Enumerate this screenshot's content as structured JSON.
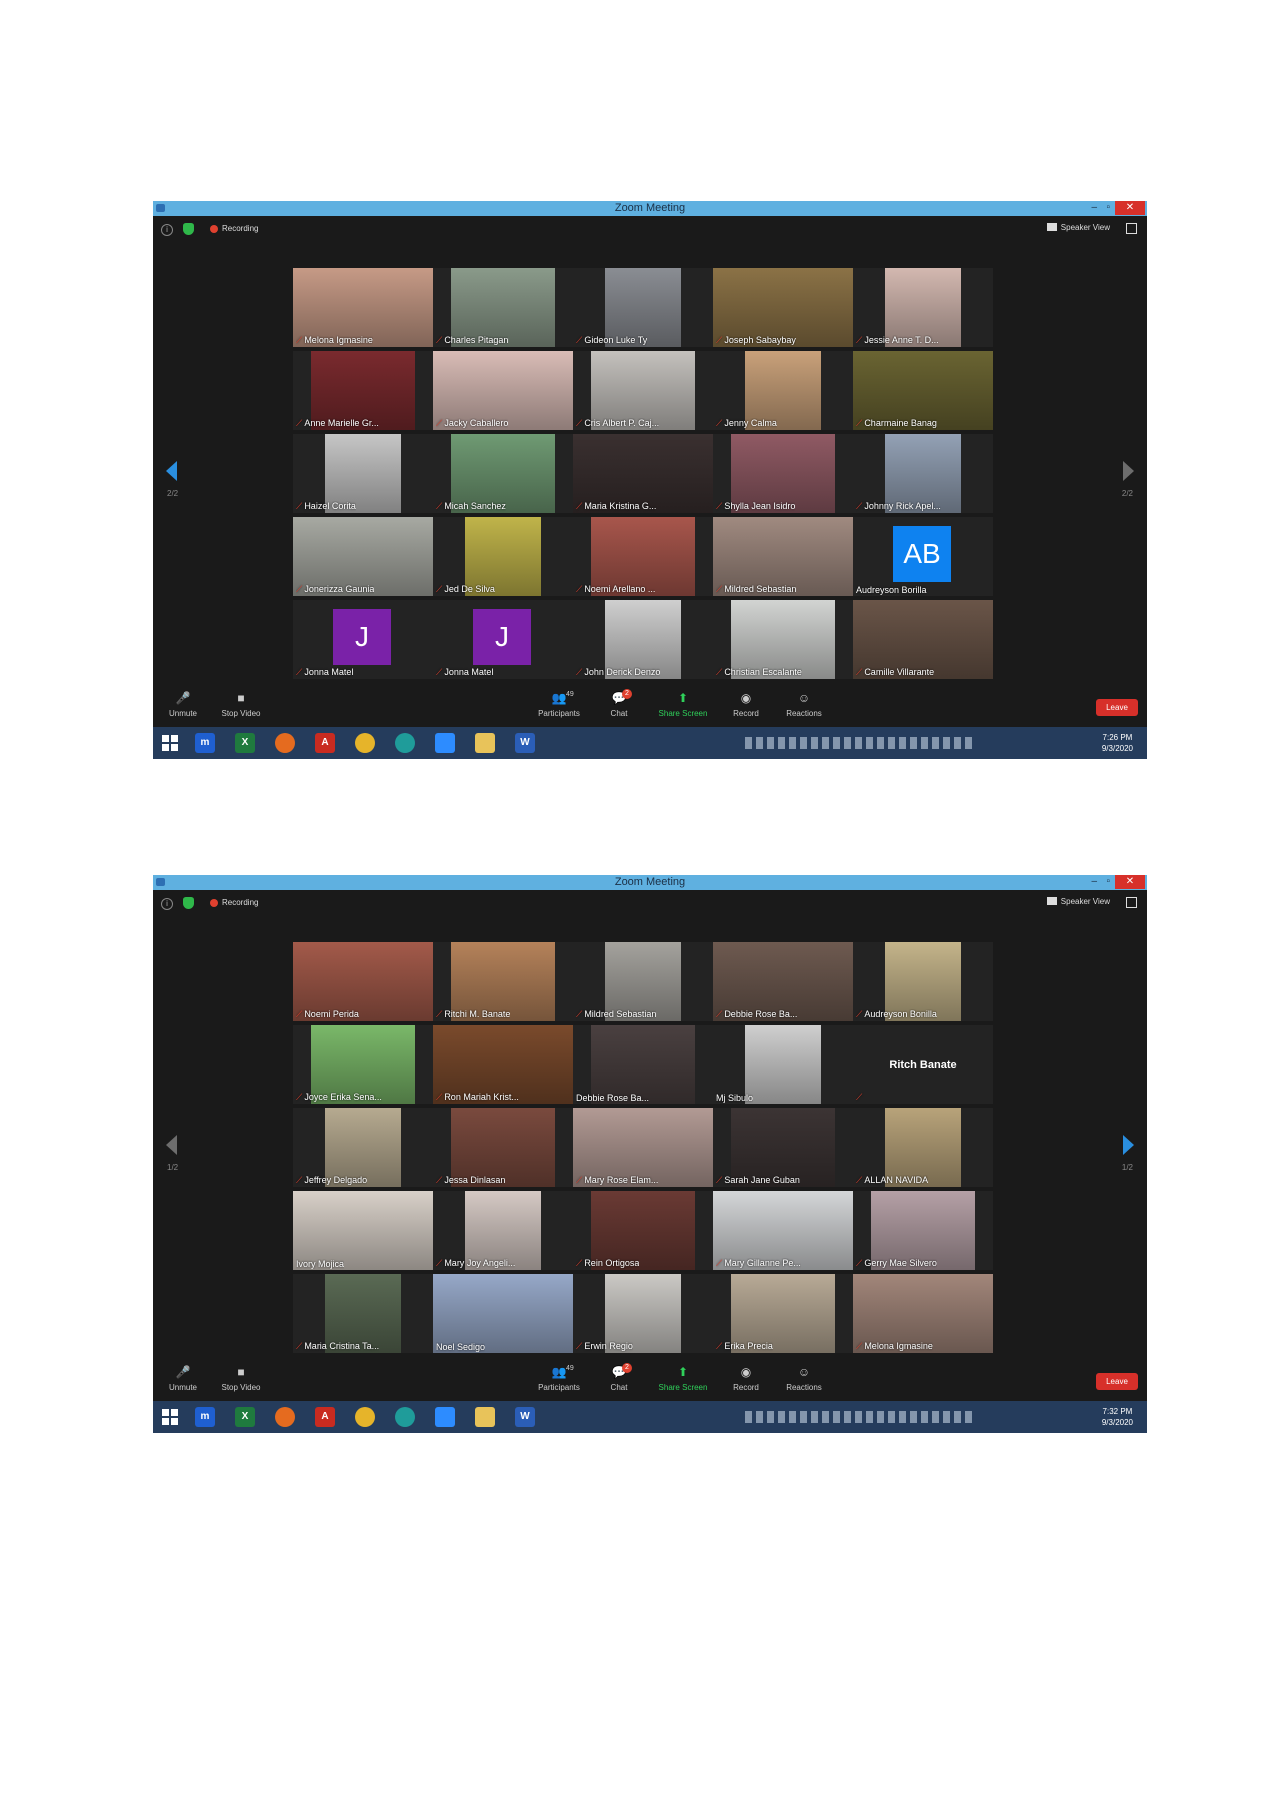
{
  "screenshots": [
    {
      "window": {
        "title": "Zoom Meeting",
        "minimize": "–",
        "maximize": "▫",
        "close": "✕"
      },
      "topbar": {
        "recording_label": "Recording",
        "view_label": "Speaker View"
      },
      "pager": {
        "left": "2/2",
        "right": "2/2"
      },
      "participants": [
        {
          "name": "Melona Igmasine",
          "muted": true,
          "video": true,
          "bg": "#c69a86"
        },
        {
          "name": "Charles Pitagan",
          "muted": true,
          "video": true,
          "bg": "#8a9a8a"
        },
        {
          "name": "Gideon Luke Ty",
          "muted": true,
          "video": true,
          "bg": "#8a8d93"
        },
        {
          "name": "Joseph Sabaybay",
          "muted": true,
          "video": true,
          "bg": "#8b7246"
        },
        {
          "name": "Jessie Anne T. D...",
          "muted": true,
          "video": true,
          "bg": "#d3b8b0"
        },
        {
          "name": "Anne Marielle Gr...",
          "muted": true,
          "video": true,
          "bg": "#7a2a2e"
        },
        {
          "name": "Jacky Caballero",
          "muted": true,
          "video": true,
          "bg": "#d9bcb6"
        },
        {
          "name": "Cris Albert P. Caj...",
          "muted": true,
          "video": true,
          "bg": "#c4c1bd"
        },
        {
          "name": "Jenny Calma",
          "muted": true,
          "video": true,
          "bg": "#c9a17a"
        },
        {
          "name": "Charmaine Banag",
          "muted": true,
          "video": true,
          "bg": "#6a6432"
        },
        {
          "name": "Haizel Corita",
          "muted": true,
          "video": true,
          "bg": "#c6c6c6"
        },
        {
          "name": "Micah Sanchez",
          "muted": true,
          "video": true,
          "bg": "#6f9a73"
        },
        {
          "name": "Maria Kristina G...",
          "muted": true,
          "video": true,
          "bg": "#3a3030"
        },
        {
          "name": "Shylla Jean Isidro",
          "muted": true,
          "video": true,
          "bg": "#905a64"
        },
        {
          "name": "Johnny Rick Apel...",
          "muted": true,
          "video": true,
          "bg": "#93a1b5"
        },
        {
          "name": "Jonerizza Gaunia",
          "muted": true,
          "video": true,
          "bg": "#a7a9a2"
        },
        {
          "name": "Jed De Silva",
          "muted": true,
          "video": true,
          "bg": "#c0b44a"
        },
        {
          "name": "Noemi Arellano ...",
          "muted": true,
          "video": true,
          "bg": "#a8564c"
        },
        {
          "name": "Mildred Sebastian",
          "muted": true,
          "video": true,
          "bg": "#a08a80"
        },
        {
          "name": "Audreyson Borilla",
          "muted": false,
          "video": false,
          "avatar": "AB",
          "avatar_color": "#0e82f0"
        },
        {
          "name": "Jonna Matel",
          "muted": true,
          "video": false,
          "avatar": "J",
          "avatar_color": "#7a22a8"
        },
        {
          "name": "Jonna Matel",
          "muted": true,
          "video": false,
          "avatar": "J",
          "avatar_color": "#7a22a8"
        },
        {
          "name": "John Derick Denzo",
          "muted": true,
          "video": true,
          "bg": "#cfcfcf"
        },
        {
          "name": "Christian Escalante",
          "muted": true,
          "video": true,
          "bg": "#d2d4d2"
        },
        {
          "name": "Camille Villarante",
          "muted": true,
          "video": true,
          "bg": "#6a5548"
        }
      ],
      "controls": {
        "unmute": "Unmute",
        "stop_video": "Stop Video",
        "participants": "Participants",
        "participants_count": "49",
        "chat": "Chat",
        "chat_badge": "2",
        "share_screen": "Share Screen",
        "record": "Record",
        "reactions": "Reactions",
        "leave": "Leave"
      },
      "taskbar": {
        "time": "7:26 PM",
        "date": "9/3/2020"
      }
    },
    {
      "window": {
        "title": "Zoom Meeting",
        "minimize": "–",
        "maximize": "▫",
        "close": "✕"
      },
      "topbar": {
        "recording_label": "Recording",
        "view_label": "Speaker View"
      },
      "pager": {
        "left": "1/2",
        "right": "1/2"
      },
      "participants": [
        {
          "name": "Noemi Perida",
          "muted": true,
          "video": true,
          "bg": "#a35a4a"
        },
        {
          "name": "Ritchi M. Banate",
          "muted": true,
          "video": true,
          "bg": "#b5825a"
        },
        {
          "name": "Mildred Sebastian",
          "muted": true,
          "video": true,
          "bg": "#a4a29d"
        },
        {
          "name": "Debbie Rose Ba...",
          "muted": true,
          "video": true,
          "bg": "#6e5a50"
        },
        {
          "name": "Audreyson Bonilla",
          "muted": true,
          "video": true,
          "bg": "#c4b48a"
        },
        {
          "name": "Joyce Erika Sena...",
          "muted": true,
          "video": true,
          "bg": "#7ab869"
        },
        {
          "name": "Ron Mariah Krist...",
          "muted": true,
          "video": true,
          "bg": "#7a4a2c"
        },
        {
          "name": "Debbie Rose Ba...",
          "muted": false,
          "video": true,
          "bg": "#4a4040"
        },
        {
          "name": "Mj Sibulo",
          "muted": false,
          "video": true,
          "bg": "#cfcfcf"
        },
        {
          "name": "",
          "muted": true,
          "video": false,
          "text": "Ritch Banate"
        },
        {
          "name": "Jeffrey Delgado",
          "muted": true,
          "video": true,
          "bg": "#b6aa90"
        },
        {
          "name": "Jessa Dinlasan",
          "muted": true,
          "video": true,
          "bg": "#7a4a3e"
        },
        {
          "name": "Mary Rose Elam...",
          "muted": true,
          "video": true,
          "bg": "#b29a94"
        },
        {
          "name": "Sarah Jane Guban",
          "muted": true,
          "video": true,
          "bg": "#3c3434"
        },
        {
          "name": "ALLAN NAVIDA",
          "muted": true,
          "video": true,
          "bg": "#b8a37a"
        },
        {
          "name": "Ivory Mojica",
          "muted": false,
          "video": true,
          "bg": "#d8d0c8"
        },
        {
          "name": "Mary Joy Angeli...",
          "muted": true,
          "video": true,
          "bg": "#d5c9c4"
        },
        {
          "name": "Rein Ortigosa",
          "muted": true,
          "video": true,
          "bg": "#6a3a34"
        },
        {
          "name": "Mary Gillanne Pe...",
          "muted": true,
          "video": true,
          "bg": "#d4d6d8"
        },
        {
          "name": "Gerry Mae Silvero",
          "muted": true,
          "video": true,
          "bg": "#b5a0a6"
        },
        {
          "name": "Maria Cristina Ta...",
          "muted": true,
          "video": true,
          "bg": "#5a6a54"
        },
        {
          "name": "Noel Sedigo",
          "muted": false,
          "video": true,
          "bg": "#96a8c8",
          "active": true
        },
        {
          "name": "Erwin Regio",
          "muted": true,
          "video": true,
          "bg": "#cbc9c5"
        },
        {
          "name": "Erika Precia",
          "muted": true,
          "video": true,
          "bg": "#b8aa96"
        },
        {
          "name": "Melona Igmasine",
          "muted": true,
          "video": true,
          "bg": "#a2867a"
        }
      ],
      "controls": {
        "unmute": "Unmute",
        "stop_video": "Stop Video",
        "participants": "Participants",
        "participants_count": "49",
        "chat": "Chat",
        "chat_badge": "2",
        "share_screen": "Share Screen",
        "record": "Record",
        "reactions": "Reactions",
        "leave": "Leave"
      },
      "taskbar": {
        "time": "7:32 PM",
        "date": "9/3/2020"
      }
    }
  ]
}
